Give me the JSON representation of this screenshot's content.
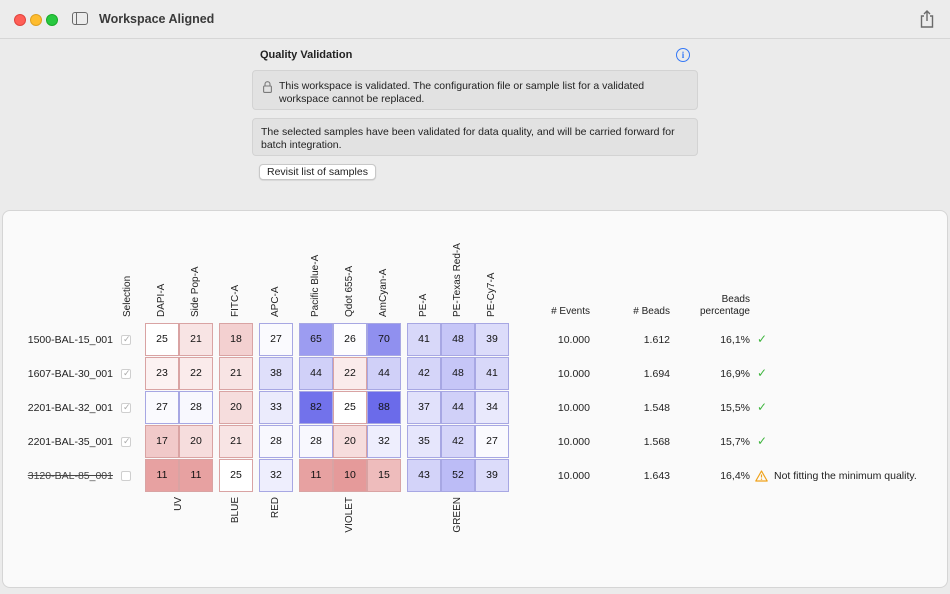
{
  "window": {
    "title": "Workspace Aligned"
  },
  "validation": {
    "title": "Quality Validation",
    "locked_message": "This workspace is validated. The configuration file or sample list for a validated workspace cannot be replaced.",
    "status_message": "The selected samples have been validated for data quality, and will be carried forward for batch integration.",
    "revisit_label": "Revisit list of samples"
  },
  "table": {
    "selection_header": "Selection",
    "channels": [
      "DAPI-A",
      "Side Pop-A",
      "FITC-A",
      "APC-A",
      "Pacific Blue-A",
      "Qdot 655-A",
      "AmCyan-A",
      "PE-A",
      "PE-Texas Red-A",
      "PE-Cy7-A"
    ],
    "groups": [
      "UV",
      "BLUE",
      "RED",
      "VIOLET",
      "GREEN"
    ],
    "events_header": "# Events",
    "beads_header": "# Beads",
    "beads_pct_header_line1": "Beads",
    "beads_pct_header_line2": "percentage",
    "rows": [
      {
        "name": "1500-BAL-15_001",
        "selected": true,
        "values": [
          25,
          21,
          18,
          27,
          65,
          26,
          70,
          41,
          48,
          39
        ],
        "events": "10.000",
        "beads": "1.612",
        "pct": "16,1%",
        "status": "ok",
        "note": ""
      },
      {
        "name": "1607-BAL-30_001",
        "selected": true,
        "values": [
          23,
          22,
          21,
          38,
          44,
          22,
          44,
          42,
          48,
          41
        ],
        "events": "10.000",
        "beads": "1.694",
        "pct": "16,9%",
        "status": "ok",
        "note": ""
      },
      {
        "name": "2201-BAL-32_001",
        "selected": true,
        "values": [
          27,
          28,
          20,
          33,
          82,
          25,
          88,
          37,
          44,
          34
        ],
        "events": "10.000",
        "beads": "1.548",
        "pct": "15,5%",
        "status": "ok",
        "note": ""
      },
      {
        "name": "2201-BAL-35_001",
        "selected": true,
        "values": [
          17,
          20,
          21,
          28,
          28,
          20,
          32,
          35,
          42,
          27
        ],
        "events": "10.000",
        "beads": "1.568",
        "pct": "15,7%",
        "status": "ok",
        "note": ""
      },
      {
        "name": "3120-BAL-85_001",
        "selected": false,
        "values": [
          11,
          11,
          25,
          32,
          11,
          10,
          15,
          43,
          52,
          39
        ],
        "events": "10.000",
        "beads": "1.643",
        "pct": "16,4%",
        "status": "warning",
        "note": "Not fitting the minimum quality."
      }
    ]
  },
  "colors": {
    "scale_center": 25,
    "low": "#e59a9a",
    "high": "#6b6bea",
    "ok": "#3fb53f",
    "warning": "#f0a21a",
    "accent": "#3478f6"
  },
  "icons": {
    "sidebar": "sidebar-icon",
    "share": "share-icon",
    "info": "info-icon",
    "lock": "lock-icon",
    "check": "checkmark-icon",
    "warning": "warning-icon"
  }
}
